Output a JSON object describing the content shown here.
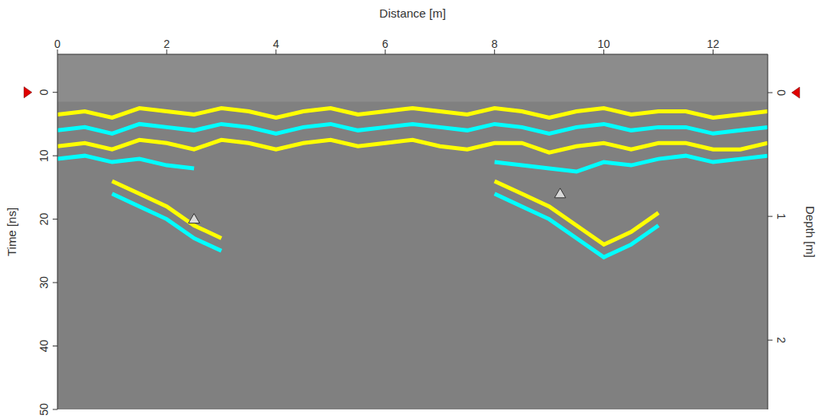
{
  "chart_data": {
    "type": "radargram",
    "title": "Distance [m]",
    "x_label": "Distance [m]",
    "y_label": "Time [ns]",
    "y2_label": "Depth [m]",
    "xlim": [
      0,
      13
    ],
    "xticks": [
      0,
      2,
      4,
      6,
      8,
      10,
      12
    ],
    "ylim": [
      -6,
      50
    ],
    "yticks": [
      0,
      10,
      20,
      30,
      40,
      50
    ],
    "y2lim": [
      -0.31,
      2.56
    ],
    "y2ticks": [
      0,
      1,
      2
    ],
    "grid": false,
    "surface_time": 1.5,
    "zero_marker": 0,
    "background_color": "#808080",
    "air_color": "#8c8c8c",
    "x": [
      0,
      0.5,
      1,
      1.5,
      2,
      2.5,
      3,
      3.5,
      4,
      4.5,
      5,
      5.5,
      6,
      6.5,
      7,
      7.5,
      8,
      8.5,
      9,
      9.5,
      10,
      10.5,
      11,
      11.5,
      12,
      12.5,
      13
    ],
    "series": [
      {
        "color": "#ffff00",
        "values": [
          3.5,
          3,
          4,
          2.5,
          3,
          3.5,
          2.5,
          3,
          4,
          3,
          2.5,
          3.5,
          3,
          2.5,
          3,
          3.5,
          2.5,
          3,
          4,
          3,
          2.5,
          3.5,
          3,
          3,
          4,
          3.5,
          3
        ]
      },
      {
        "color": "#00ffff",
        "values": [
          6,
          5.5,
          6.5,
          5,
          5.5,
          6,
          5,
          5.5,
          6.5,
          5.5,
          5,
          6,
          5.5,
          5,
          5.5,
          6,
          5,
          5.5,
          6.5,
          5.5,
          5,
          6,
          5.5,
          5.5,
          6.5,
          6,
          5.5
        ]
      },
      {
        "color": "#ffff00",
        "values": [
          8.5,
          8,
          9,
          7.5,
          8,
          9,
          7.5,
          8,
          9,
          8,
          7.5,
          8.5,
          8,
          7.5,
          8.5,
          9,
          8,
          8,
          9.5,
          8.5,
          8,
          9,
          8,
          8,
          9,
          9,
          8
        ]
      },
      {
        "color": "#00ffff",
        "values": [
          10.5,
          10,
          11,
          10.5,
          11.5,
          12,
          null,
          null,
          null,
          null,
          null,
          null,
          null,
          null,
          null,
          null,
          11,
          11.5,
          12,
          12.5,
          11,
          11.5,
          10.5,
          10,
          11,
          10.5,
          10
        ]
      },
      {
        "color": "#ffff00",
        "values": [
          null,
          null,
          14,
          16,
          18,
          21,
          23,
          null,
          null,
          null,
          null,
          null,
          null,
          null,
          null,
          null,
          14,
          16,
          18,
          21,
          24,
          22,
          19,
          null,
          null,
          null,
          null
        ]
      },
      {
        "color": "#00ffff",
        "values": [
          null,
          null,
          16,
          18,
          20,
          23,
          25,
          null,
          null,
          null,
          null,
          null,
          null,
          null,
          null,
          null,
          16,
          18,
          20,
          23,
          26,
          24,
          21,
          null,
          null,
          null,
          null
        ]
      }
    ],
    "markers": [
      {
        "x": 2.5,
        "y": 20
      },
      {
        "x": 9.2,
        "y": 16
      }
    ],
    "marker": "triangle"
  }
}
